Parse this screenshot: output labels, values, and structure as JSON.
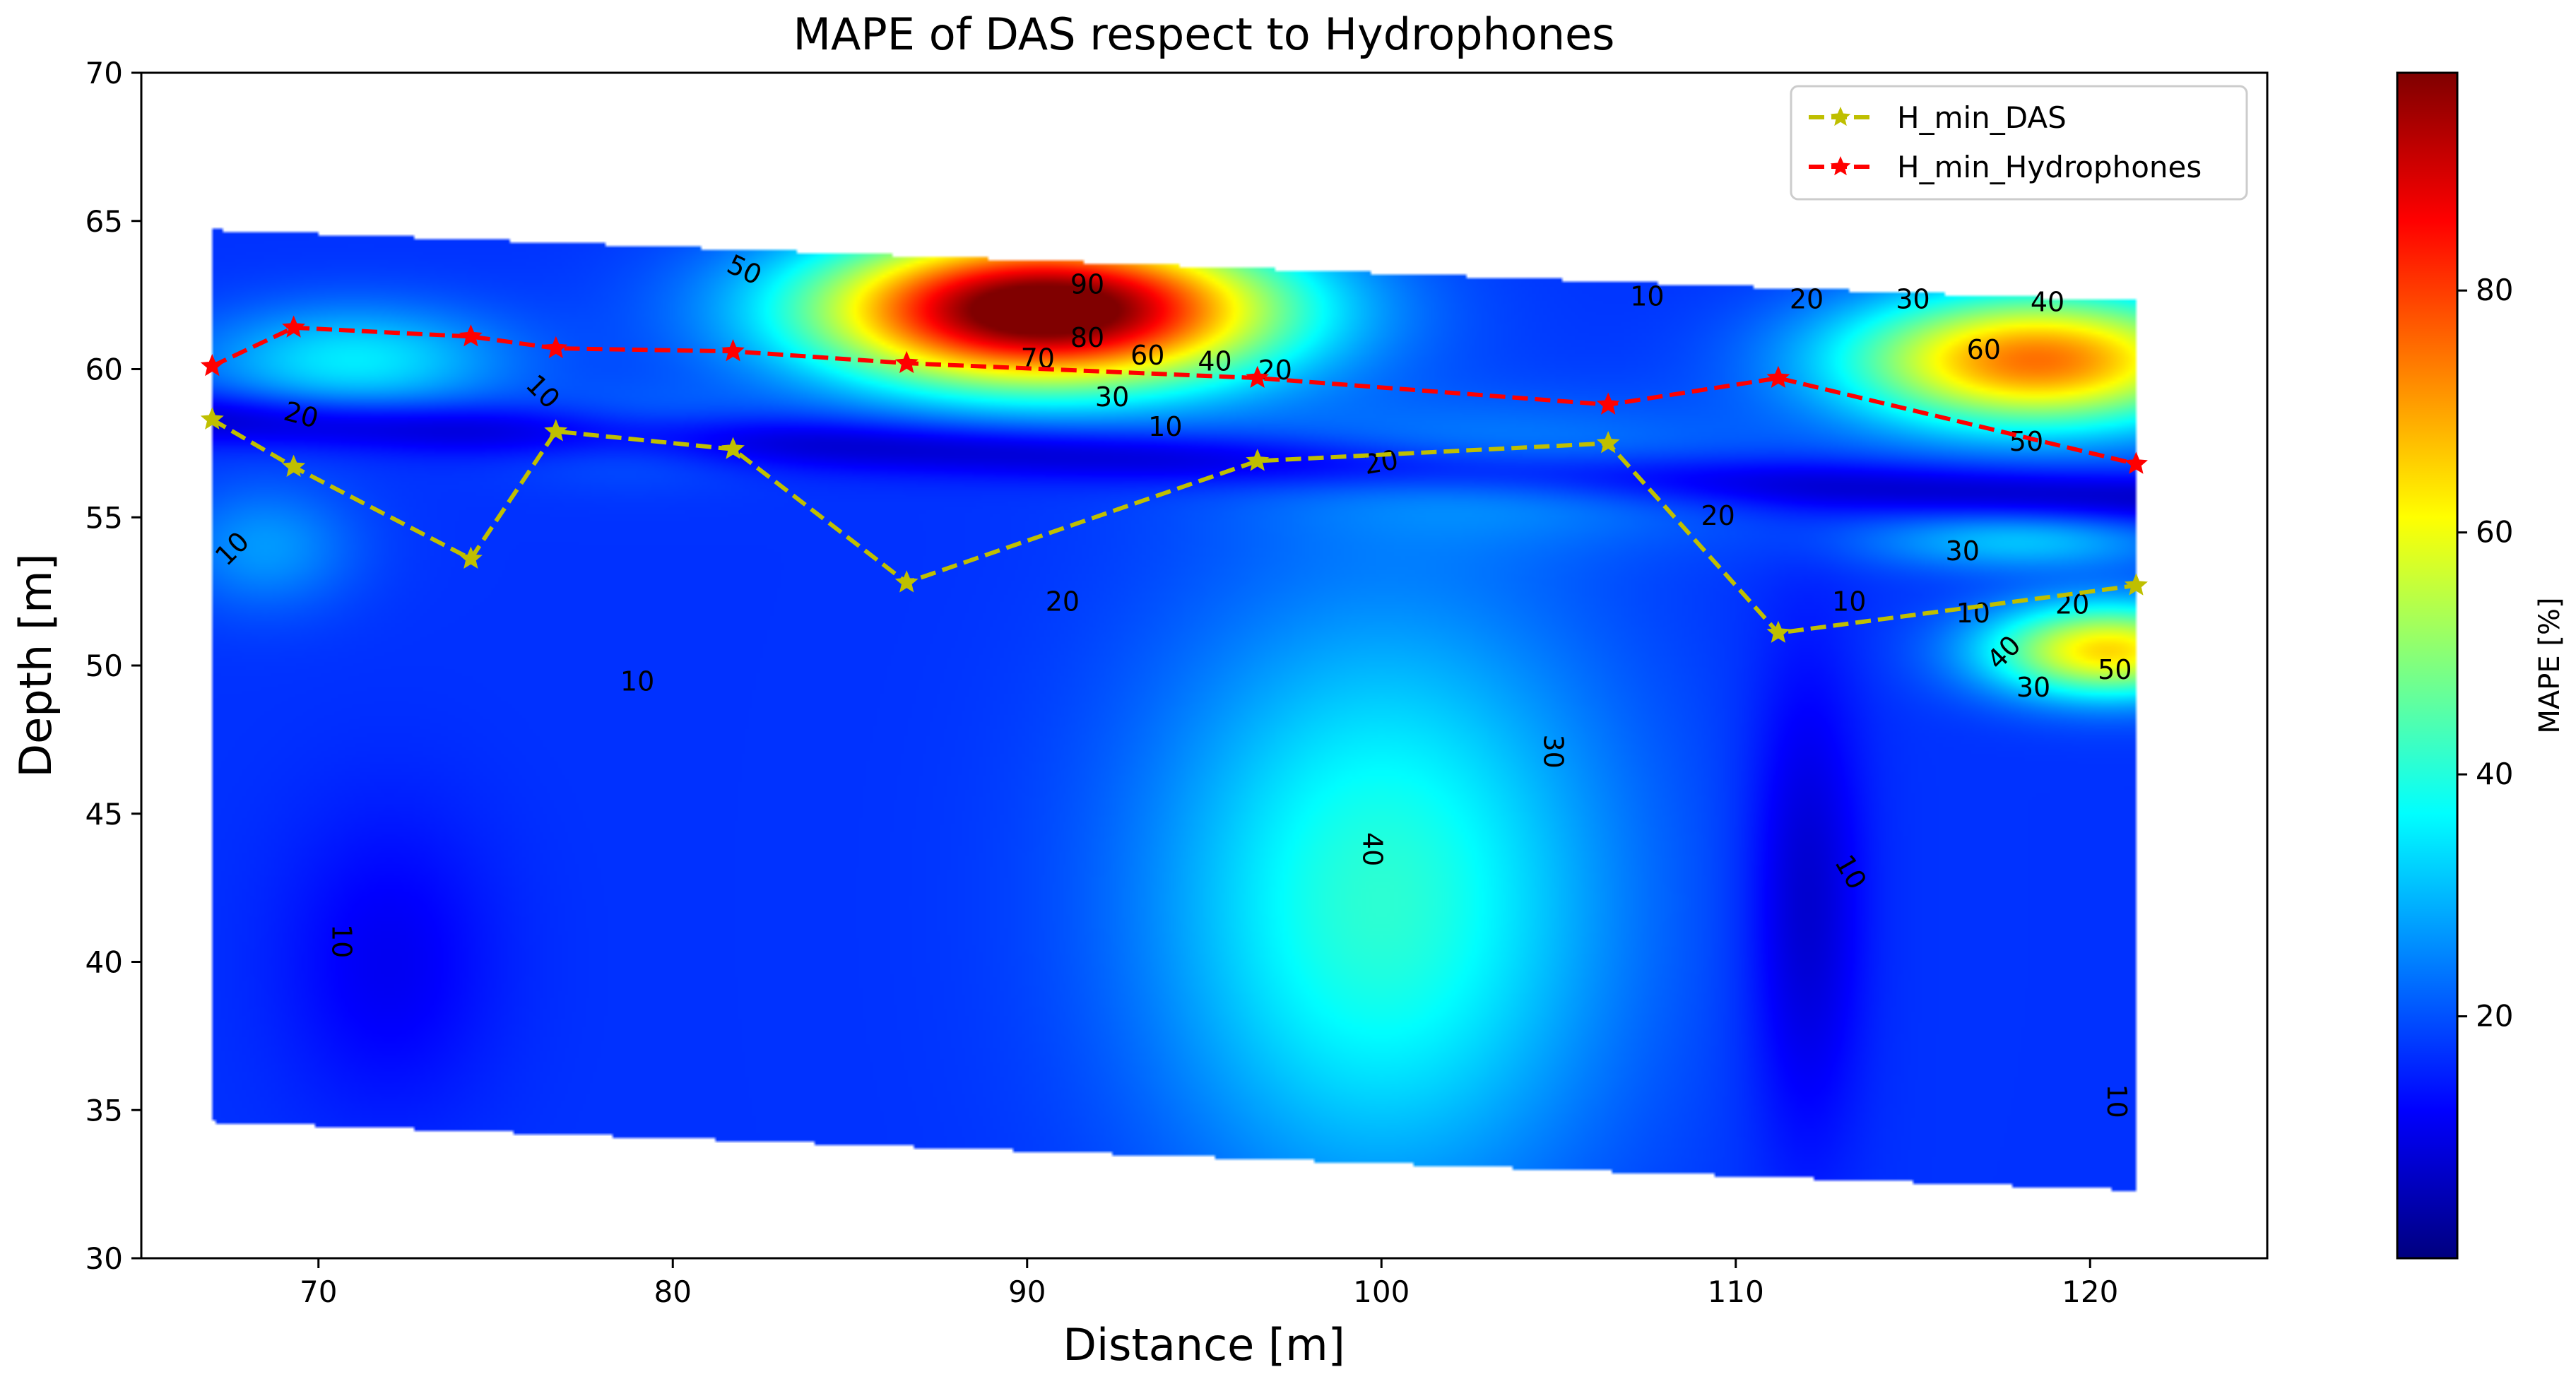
{
  "chart_data": {
    "type": "heatmap",
    "title": "MAPE of DAS respect to Hydrophones",
    "xlabel": "Distance [m]",
    "ylabel": "Depth [m]",
    "xlim": [
      65,
      125
    ],
    "ylim": [
      30,
      70
    ],
    "xticks": [
      70,
      80,
      90,
      100,
      110,
      120
    ],
    "yticks": [
      30,
      35,
      40,
      45,
      50,
      55,
      60,
      65,
      70
    ],
    "colorbar": {
      "label": "MAPE [%]",
      "range": [
        0,
        98
      ],
      "ticks": [
        20,
        40,
        60,
        80
      ],
      "colormap": "jet",
      "colors": [
        "#00007f",
        "#0000ff",
        "#007fff",
        "#00ffff",
        "#7fff7f",
        "#ffff00",
        "#ff7f00",
        "#ff0000",
        "#7f0000"
      ]
    },
    "field_extent": {
      "x": [
        67,
        121.3
      ],
      "top_depth": [
        64.7,
        62.3
      ],
      "bottom_depth": [
        34.6,
        32.3
      ]
    },
    "blobs": [
      {
        "x": 90.5,
        "y": 62.0,
        "sx": 4.5,
        "sy": 1.8,
        "amp": 90
      },
      {
        "x": 118.5,
        "y": 60.3,
        "sx": 3.8,
        "sy": 1.6,
        "amp": 58
      },
      {
        "x": 120.5,
        "y": 50.5,
        "sx": 2.4,
        "sy": 1.1,
        "amp": 48
      },
      {
        "x": 100.0,
        "y": 42.0,
        "sx": 4.5,
        "sy": 7.0,
        "amp": 24
      },
      {
        "x": 71.0,
        "y": 60.3,
        "sx": 3.0,
        "sy": 1.3,
        "amp": 18
      },
      {
        "x": 104.0,
        "y": 56.5,
        "sx": 5.0,
        "sy": 1.6,
        "amp": 9
      },
      {
        "x": 118.0,
        "y": 54.2,
        "sx": 3.0,
        "sy": 0.7,
        "amp": 14
      },
      {
        "x": 68.5,
        "y": 54.0,
        "sx": 1.8,
        "sy": 1.5,
        "amp": 10
      },
      {
        "x": 79.0,
        "y": 57.8,
        "sx": 2.5,
        "sy": 1.0,
        "amp": 8
      }
    ],
    "base_value": 17,
    "series": [
      {
        "name": "H_min_DAS",
        "color": "#bfbf00",
        "x": [
          67,
          69.3,
          74.3,
          76.7,
          81.7,
          86.6,
          96.5,
          106.4,
          111.2,
          121.3
        ],
        "y": [
          58.3,
          56.7,
          53.6,
          57.9,
          57.3,
          52.8,
          56.9,
          57.5,
          51.1,
          52.7
        ]
      },
      {
        "name": "H_min_Hydrophones",
        "color": "#ff0000",
        "x": [
          67,
          69.3,
          74.3,
          76.7,
          81.7,
          86.6,
          96.5,
          106.4,
          111.2,
          121.3
        ],
        "y": [
          60.1,
          61.4,
          61.1,
          60.7,
          60.6,
          60.2,
          59.7,
          58.8,
          59.7,
          56.8
        ]
      }
    ],
    "contour_labels": [
      {
        "text": "90",
        "x": 91.7,
        "y": 62.8,
        "rot": 0
      },
      {
        "text": "80",
        "x": 91.7,
        "y": 61.0,
        "rot": 0
      },
      {
        "text": "70",
        "x": 90.3,
        "y": 60.3,
        "rot": 0
      },
      {
        "text": "60",
        "x": 93.4,
        "y": 60.4,
        "rot": 0
      },
      {
        "text": "50",
        "x": 82.0,
        "y": 63.3,
        "rot": 25
      },
      {
        "text": "40",
        "x": 95.3,
        "y": 60.2,
        "rot": 0
      },
      {
        "text": "30",
        "x": 92.4,
        "y": 59.0,
        "rot": 0
      },
      {
        "text": "20",
        "x": 97.0,
        "y": 59.9,
        "rot": 0
      },
      {
        "text": "10",
        "x": 93.9,
        "y": 58.0,
        "rot": 0
      },
      {
        "text": "10",
        "x": 107.5,
        "y": 62.4,
        "rot": 0
      },
      {
        "text": "20",
        "x": 112.0,
        "y": 62.3,
        "rot": 0
      },
      {
        "text": "30",
        "x": 115.0,
        "y": 62.3,
        "rot": 0
      },
      {
        "text": "40",
        "x": 118.8,
        "y": 62.2,
        "rot": 0
      },
      {
        "text": "60",
        "x": 117.0,
        "y": 60.6,
        "rot": 0
      },
      {
        "text": "50",
        "x": 118.2,
        "y": 57.5,
        "rot": 0
      },
      {
        "text": "20",
        "x": 69.5,
        "y": 58.4,
        "rot": 15
      },
      {
        "text": "10",
        "x": 76.3,
        "y": 59.2,
        "rot": 45
      },
      {
        "text": "10",
        "x": 67.6,
        "y": 53.9,
        "rot": -45
      },
      {
        "text": "20",
        "x": 100.0,
        "y": 56.8,
        "rot": -10
      },
      {
        "text": "20",
        "x": 109.5,
        "y": 55.0,
        "rot": 0
      },
      {
        "text": "30",
        "x": 116.4,
        "y": 53.8,
        "rot": 0
      },
      {
        "text": "20",
        "x": 91.0,
        "y": 52.1,
        "rot": 0
      },
      {
        "text": "10",
        "x": 113.2,
        "y": 52.1,
        "rot": 0
      },
      {
        "text": "10",
        "x": 116.7,
        "y": 51.7,
        "rot": 0
      },
      {
        "text": "20",
        "x": 119.5,
        "y": 52.0,
        "rot": 0
      },
      {
        "text": "40",
        "x": 117.6,
        "y": 50.4,
        "rot": -45
      },
      {
        "text": "50",
        "x": 120.7,
        "y": 49.8,
        "rot": 0
      },
      {
        "text": "30",
        "x": 118.4,
        "y": 49.2,
        "rot": 0
      },
      {
        "text": "10",
        "x": 79.0,
        "y": 49.4,
        "rot": 0
      },
      {
        "text": "40",
        "x": 99.7,
        "y": 43.8,
        "rot": 90
      },
      {
        "text": "30",
        "x": 104.8,
        "y": 47.1,
        "rot": 90
      },
      {
        "text": "10",
        "x": 113.2,
        "y": 43.0,
        "rot": 60
      },
      {
        "text": "10",
        "x": 70.6,
        "y": 40.7,
        "rot": 90
      },
      {
        "text": "10",
        "x": 120.7,
        "y": 35.3,
        "rot": 90
      }
    ]
  }
}
